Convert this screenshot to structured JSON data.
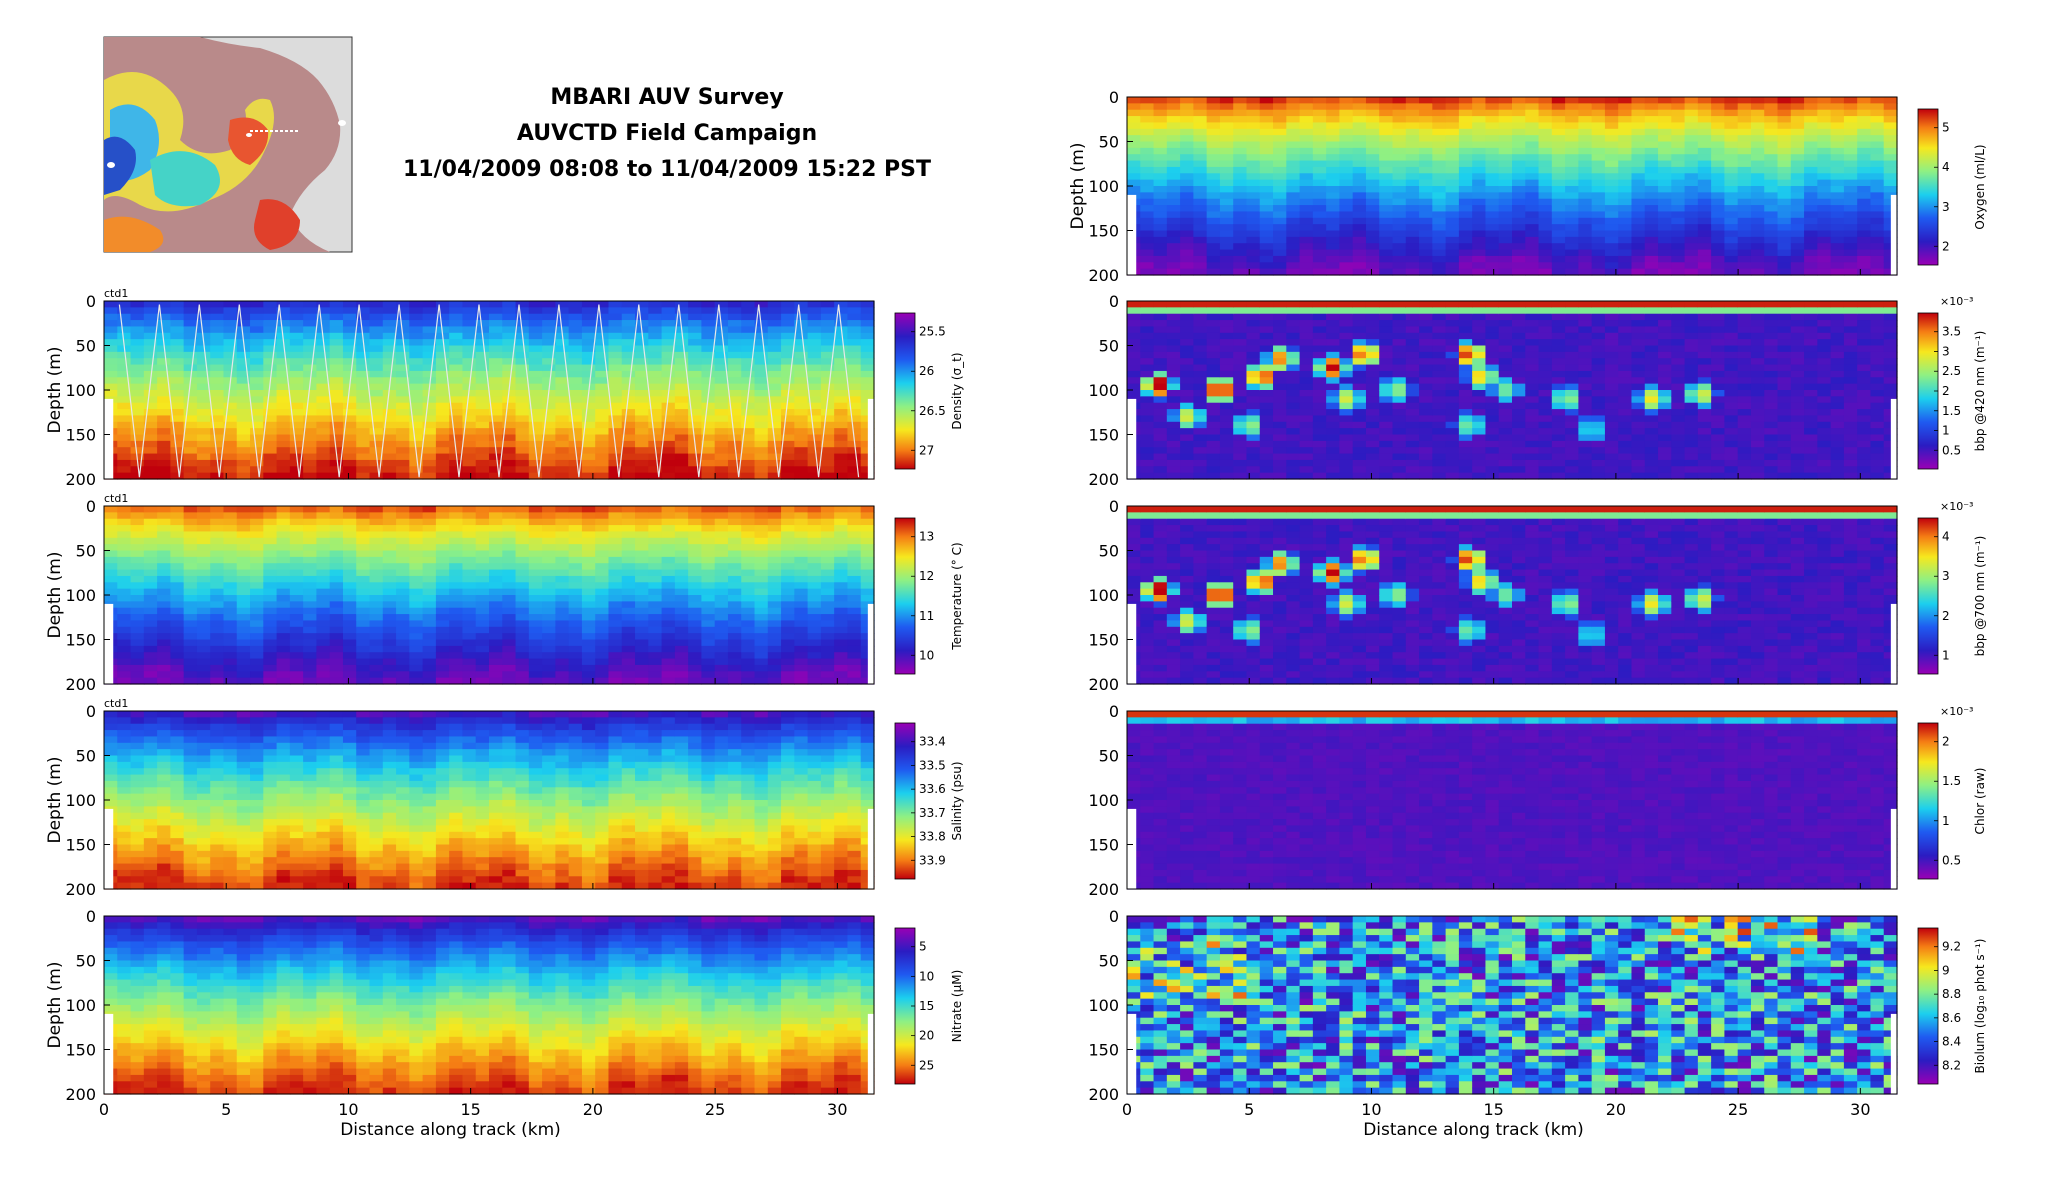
{
  "figure": {
    "title_lines": [
      "MBARI AUV Survey",
      "AUVCTD Field Campaign",
      "11/04/2009 08:08 to 11/04/2009 15:22 PST"
    ]
  },
  "chart_data": [
    {
      "id": "density",
      "type": "heatmap",
      "tag": "ctd1",
      "ylabel": "Depth (m)",
      "yticks": [
        "0",
        "50",
        "100",
        "150",
        "200"
      ],
      "ylim": [
        0,
        200
      ],
      "y_reversed": true,
      "xlim": [
        0,
        31.5
      ],
      "cbar_label": "Density (σ_t)",
      "cbar_ticks": [
        "25.5",
        "26",
        "26.5",
        "27"
      ],
      "cmap": "jet_reversed",
      "surface": 0.15,
      "deep": 1.0,
      "noise": 0.06,
      "has_track": true
    },
    {
      "id": "temperature",
      "type": "heatmap",
      "tag": "ctd1",
      "ylabel": "Depth (m)",
      "yticks": [
        "0",
        "50",
        "100",
        "150",
        "200"
      ],
      "ylim": [
        0,
        200
      ],
      "y_reversed": true,
      "xlim": [
        0,
        31.5
      ],
      "cbar_label": "Temperature (° C)",
      "cbar_ticks": [
        "13",
        "12",
        "11",
        "10"
      ],
      "cmap": "jet",
      "surface": 0.95,
      "deep": 0.05,
      "noise": 0.05
    },
    {
      "id": "salinity",
      "type": "heatmap",
      "tag": "ctd1",
      "ylabel": "Depth (m)",
      "yticks": [
        "0",
        "50",
        "100",
        "150",
        "200"
      ],
      "ylim": [
        0,
        200
      ],
      "y_reversed": true,
      "xlim": [
        0,
        31.5
      ],
      "cbar_label": "Salinity (psu)",
      "cbar_ticks": [
        "33.4",
        "33.5",
        "33.6",
        "33.7",
        "33.8",
        "33.9"
      ],
      "cmap": "jet_reversed",
      "surface": 0.08,
      "deep": 0.97,
      "noise": 0.06
    },
    {
      "id": "nitrate",
      "type": "heatmap",
      "tag": "",
      "ylabel": "Depth (m)",
      "yticks": [
        "0",
        "50",
        "100",
        "150",
        "200"
      ],
      "ylim": [
        0,
        200
      ],
      "y_reversed": true,
      "xlim": [
        0,
        31.5
      ],
      "xticks": [
        "0",
        "5",
        "10",
        "15",
        "20",
        "25",
        "30"
      ],
      "xlabel": "Distance along track (km)",
      "cbar_label": "Nitrate (μM)",
      "cbar_ticks": [
        "5",
        "10",
        "15",
        "20",
        "25"
      ],
      "cmap": "jet_reversed",
      "surface": 0.05,
      "deep": 0.97,
      "noise": 0.05
    },
    {
      "id": "oxygen",
      "type": "heatmap",
      "tag": "",
      "ylabel": "Depth (m)",
      "yticks": [
        "0",
        "50",
        "100",
        "150",
        "200"
      ],
      "ylim": [
        0,
        200
      ],
      "y_reversed": true,
      "xlim": [
        0,
        31.5
      ],
      "cbar_label": "Oxygen (ml/L)",
      "cbar_ticks": [
        "5",
        "4",
        "3",
        "2"
      ],
      "cmap": "jet",
      "surface": 0.98,
      "deep": 0.04,
      "noise": 0.05
    },
    {
      "id": "bbp420",
      "type": "heatmap",
      "tag": "",
      "ylabel": "",
      "yticks": [
        "0",
        "50",
        "100",
        "150",
        "200"
      ],
      "ylim": [
        0,
        200
      ],
      "y_reversed": true,
      "xlim": [
        0,
        31.5
      ],
      "cbar_label": "bbp @420 nm (m⁻¹)",
      "cbar_exp": "×10⁻³",
      "cbar_ticks": [
        "3.5",
        "3",
        "2.5",
        "2",
        "1.5",
        "1",
        "0.5"
      ],
      "cmap": "jet",
      "mode": "patchy"
    },
    {
      "id": "bbp700",
      "type": "heatmap",
      "tag": "",
      "ylabel": "",
      "yticks": [
        "0",
        "50",
        "100",
        "150",
        "200"
      ],
      "ylim": [
        0,
        200
      ],
      "y_reversed": true,
      "xlim": [
        0,
        31.5
      ],
      "cbar_label": "bbp @700 nm (m⁻¹)",
      "cbar_exp": "×10⁻³",
      "cbar_ticks": [
        "4",
        "3",
        "2",
        "1"
      ],
      "cmap": "jet",
      "mode": "patchy"
    },
    {
      "id": "chlor",
      "type": "heatmap",
      "tag": "",
      "ylabel": "",
      "yticks": [
        "0",
        "50",
        "100",
        "150",
        "200"
      ],
      "ylim": [
        0,
        200
      ],
      "y_reversed": true,
      "xlim": [
        0,
        31.5
      ],
      "cbar_label": "Chlor (raw)",
      "cbar_exp": "×10⁻³",
      "cbar_ticks": [
        "2",
        "1.5",
        "1",
        "0.5"
      ],
      "cmap": "jet",
      "mode": "surface_only"
    },
    {
      "id": "biolum",
      "type": "heatmap",
      "tag": "",
      "ylabel": "",
      "yticks": [
        "0",
        "50",
        "100",
        "150",
        "200"
      ],
      "ylim": [
        0,
        200
      ],
      "y_reversed": true,
      "xlim": [
        0,
        31.5
      ],
      "xticks": [
        "0",
        "5",
        "10",
        "15",
        "20",
        "25",
        "30"
      ],
      "xlabel": "Distance along track (km)",
      "cbar_label": "Biolum (log₁₀ phot s⁻¹)",
      "cbar_ticks": [
        "9.2",
        "9",
        "8.8",
        "8.6",
        "8.4",
        "8.2"
      ],
      "cmap": "jet",
      "mode": "noisy"
    }
  ]
}
